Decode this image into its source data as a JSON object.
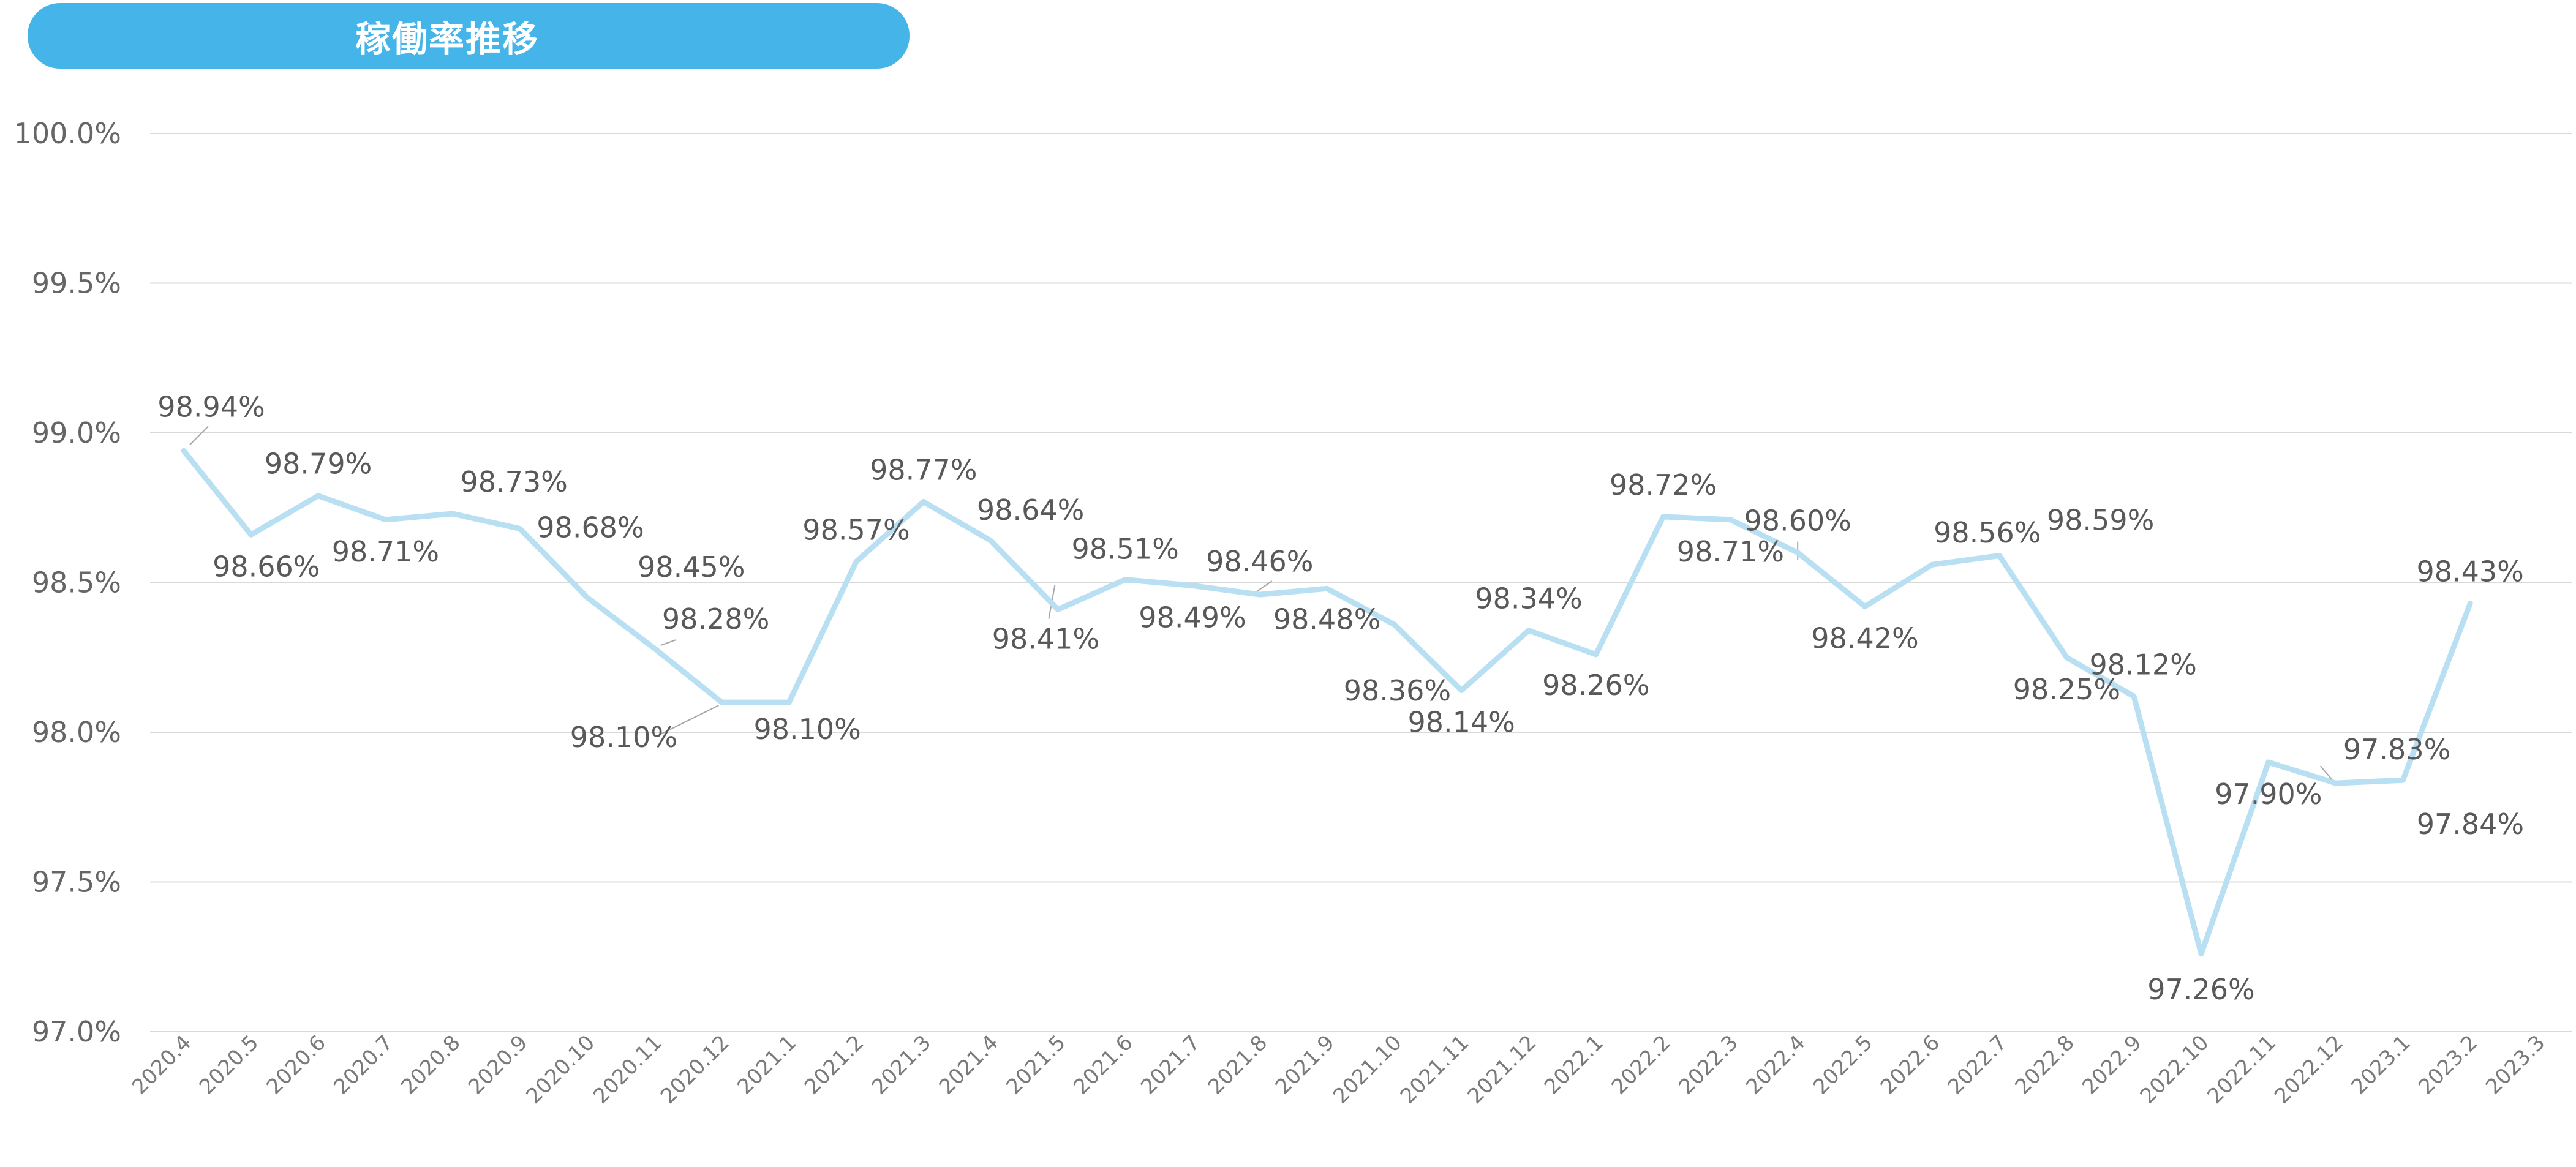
{
  "title": "稼働率推移",
  "colors": {
    "title_bg": "#45b4e8",
    "line": "#b9e0f2",
    "grid": "#d9d9d9",
    "leader": "#a6a6a6"
  },
  "chart_data": {
    "type": "line",
    "title": "稼働率推移",
    "xlabel": "",
    "ylabel": "",
    "ylim": [
      97.0,
      100.0
    ],
    "y_ticks": [
      "97.0%",
      "97.5%",
      "98.0%",
      "98.5%",
      "99.0%",
      "99.5%",
      "100.0%"
    ],
    "grid": true,
    "legend": "none",
    "categories": [
      "2020.4",
      "2020.5",
      "2020.6",
      "2020.7",
      "2020.8",
      "2020.9",
      "2020.10",
      "2020.11",
      "2020.12",
      "2021.1",
      "2021.2",
      "2021.3",
      "2021.4",
      "2021.5",
      "2021.6",
      "2021.7",
      "2021.8",
      "2021.9",
      "2021.10",
      "2021.11",
      "2021.12",
      "2022.1",
      "2022.2",
      "2022.3",
      "2022.4",
      "2022.5",
      "2022.6",
      "2022.7",
      "2022.8",
      "2022.9",
      "2022.10",
      "2022.11",
      "2022.12",
      "2023.1",
      "2023.2",
      "2023.3"
    ],
    "values": [
      98.94,
      98.66,
      98.79,
      98.71,
      98.73,
      98.68,
      98.45,
      98.28,
      98.1,
      98.1,
      98.57,
      98.77,
      98.64,
      98.41,
      98.51,
      98.49,
      98.46,
      98.48,
      98.36,
      98.14,
      98.34,
      98.26,
      98.72,
      98.71,
      98.6,
      98.42,
      98.56,
      98.59,
      98.25,
      98.12,
      97.26,
      97.9,
      97.83,
      97.84,
      98.43,
      null
    ],
    "data_labels": [
      "98.94%",
      "98.66%",
      "98.79%",
      "98.71%",
      "98.73%",
      "98.68%",
      "98.45%",
      "98.28%",
      "98.10%",
      "98.10%",
      "98.57%",
      "98.77%",
      "98.64%",
      "98.41%",
      "98.51%",
      "98.49%",
      "98.46%",
      "98.48%",
      "98.36%",
      "98.14%",
      "98.34%",
      "98.26%",
      "98.72%",
      "98.71%",
      "98.60%",
      "98.42%",
      "98.56%",
      "98.59%",
      "98.25%",
      "98.12%",
      "97.26%",
      "97.90%",
      "97.83%",
      "97.84%",
      "98.43%",
      ""
    ]
  }
}
